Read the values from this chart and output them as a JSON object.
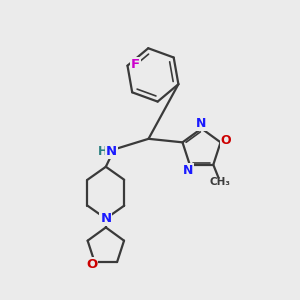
{
  "background_color": "#ebebeb",
  "bond_color": "#3a3a3a",
  "bond_width": 1.6,
  "atom_colors": {
    "N": "#1a1aff",
    "O": "#cc0000",
    "F": "#cc00cc",
    "C": "#3a3a3a",
    "H": "#2a8080",
    "NH": "#1a1aff"
  },
  "font_size": 9.5
}
